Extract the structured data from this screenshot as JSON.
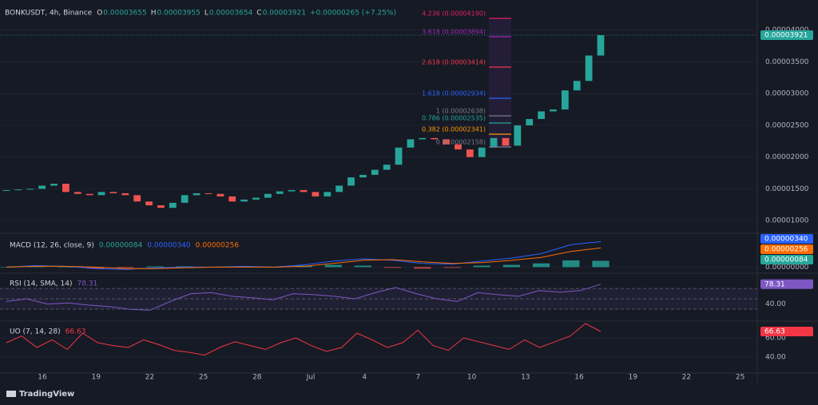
{
  "header": {
    "symbol": "BONKUSDT, 4h, Binance",
    "ohlc": [
      "O",
      "0.00003655",
      "H",
      "0.00003955",
      "L",
      "0.00003654",
      "C",
      "0.00003921",
      "+0.00000265 (+7.25%)"
    ],
    "price_tag": "0.00003921"
  },
  "fib": [
    {
      "label": "4.236 (0.00004190)",
      "color": "#e91e63"
    },
    {
      "label": "3.618 (0.00003894)",
      "color": "#9c27b0"
    },
    {
      "label": "2.618 (0.00003414)",
      "color": "#f23645"
    },
    {
      "label": "1.618 (0.00002934)",
      "color": "#2962ff"
    },
    {
      "label": "1 (0.00002638)",
      "color": "#787b86"
    },
    {
      "label": "0.786 (0.00002535)",
      "color": "#26a69a"
    },
    {
      "label": "0.382 (0.00002341)",
      "color": "#ff9800"
    },
    {
      "label": "0 (0.00002158)",
      "color": "#787b86"
    }
  ],
  "chart_data": [
    {
      "type": "candlestick",
      "up_color": "#26a69a",
      "down_color": "#ef5350",
      "values": [
        1.48e-05,
        1.49e-05,
        1.5e-05,
        1.55e-05,
        1.58e-05,
        1.45e-05,
        1.42e-05,
        1.4e-05,
        1.45e-05,
        1.43e-05,
        1.4e-05,
        1.3e-05,
        1.24e-05,
        1.2e-05,
        1.28e-05,
        1.4e-05,
        1.43e-05,
        1.42e-05,
        1.38e-05,
        1.3e-05,
        1.33e-05,
        1.36e-05,
        1.42e-05,
        1.46e-05,
        1.48e-05,
        1.45e-05,
        1.38e-05,
        1.45e-05,
        1.55e-05,
        1.68e-05,
        1.72e-05,
        1.8e-05,
        1.88e-05,
        2.15e-05,
        2.28e-05,
        2.3e-05,
        2.28e-05,
        2.2e-05,
        2.12e-05,
        2e-05,
        2.15e-05,
        2.3e-05,
        2.18e-05,
        2.5e-05,
        2.6e-05,
        2.72e-05,
        2.75e-05,
        3.05e-05,
        3.2e-05,
        3.6e-05,
        3.921e-05
      ],
      "ylim": [
        8.25e-06,
        4.475e-05
      ],
      "yticks": [
        {
          "value": 4e-05,
          "label": "0.00004000"
        },
        {
          "value": 3.5e-05,
          "label": "0.00003500"
        },
        {
          "value": 3e-05,
          "label": "0.00003000"
        },
        {
          "value": 2.5e-05,
          "label": "0.00002500"
        },
        {
          "value": 2e-05,
          "label": "0.00002000"
        },
        {
          "value": 1.5e-05,
          "label": "0.00001500"
        },
        {
          "value": 1e-05,
          "label": "0.00001000"
        }
      ]
    },
    {
      "type": "macd",
      "title": "MACD (12, 26, close, 9)",
      "series": [
        {
          "name": "0.00000340",
          "color": "#2962ff",
          "values": [
            0,
            2e-07,
            1e-07,
            -2e-07,
            -3e-07,
            -1e-07,
            0,
            0,
            1e-07,
            0,
            3e-07,
            8e-07,
            1.1e-06,
            9e-07,
            5e-07,
            4e-07,
            8e-07,
            1.2e-06,
            1.8e-06,
            3e-06,
            3.4e-06
          ]
        },
        {
          "name": "0.00000256",
          "color": "#ff6d00",
          "values": [
            0,
            1e-07,
            1e-07,
            0,
            -2e-07,
            -2e-07,
            -1e-07,
            0,
            0,
            0,
            1e-07,
            5e-07,
            9e-07,
            1e-06,
            7e-07,
            5e-07,
            6e-07,
            9e-07,
            1.3e-06,
            2.1e-06,
            2.56e-06
          ]
        }
      ],
      "histogram": {
        "name": "0.00000084",
        "color": "#26a69a",
        "down_color": "#ef5350",
        "values": [
          0,
          1e-07,
          0,
          -2e-07,
          -1e-07,
          1e-07,
          1e-07,
          0,
          1e-07,
          0,
          2e-07,
          3e-07,
          2e-07,
          -1e-07,
          -2e-07,
          -1e-07,
          2e-07,
          3e-07,
          5e-07,
          9e-07,
          8.4e-07
        ]
      },
      "ylim": [
        -6e-07,
        4.2e-06
      ],
      "yticks": [
        {
          "value": 0,
          "label": "0.00000000"
        }
      ]
    },
    {
      "type": "line",
      "title": "RSI (14, SMA, 14)",
      "series": [
        {
          "name": "78.31",
          "color": "#7e57c2",
          "values": [
            45,
            50,
            40,
            42,
            38,
            35,
            30,
            28,
            45,
            60,
            62,
            55,
            52,
            48,
            60,
            58,
            55,
            50,
            62,
            72,
            60,
            50,
            45,
            62,
            58,
            55,
            66,
            63,
            66,
            78.31
          ]
        }
      ],
      "bands": [
        70,
        50,
        30
      ],
      "ylim": [
        10,
        95
      ],
      "yticks": [
        {
          "value": 40,
          "label": "40.00"
        }
      ]
    },
    {
      "type": "line",
      "title": "UO (7, 14, 28)",
      "series": [
        {
          "name": "66.63",
          "color": "#f23645",
          "values": [
            55,
            62,
            50,
            58,
            48,
            65,
            55,
            52,
            50,
            58,
            53,
            47,
            45,
            42,
            50,
            56,
            52,
            48,
            55,
            60,
            52,
            46,
            50,
            65,
            58,
            50,
            55,
            68,
            52,
            47,
            60,
            56,
            52,
            48,
            58,
            50,
            56,
            62,
            75,
            66.63
          ]
        }
      ],
      "ylim": [
        25,
        75
      ],
      "yticks": [
        {
          "value": 60,
          "label": "60.00"
        },
        {
          "value": 40,
          "label": "40.00"
        }
      ]
    }
  ],
  "x_labels": [
    "16",
    "19",
    "22",
    "25",
    "28",
    "Jul",
    "4",
    "7",
    "10",
    "13",
    "16",
    "19",
    "22",
    "25"
  ],
  "brand": "TradingView"
}
